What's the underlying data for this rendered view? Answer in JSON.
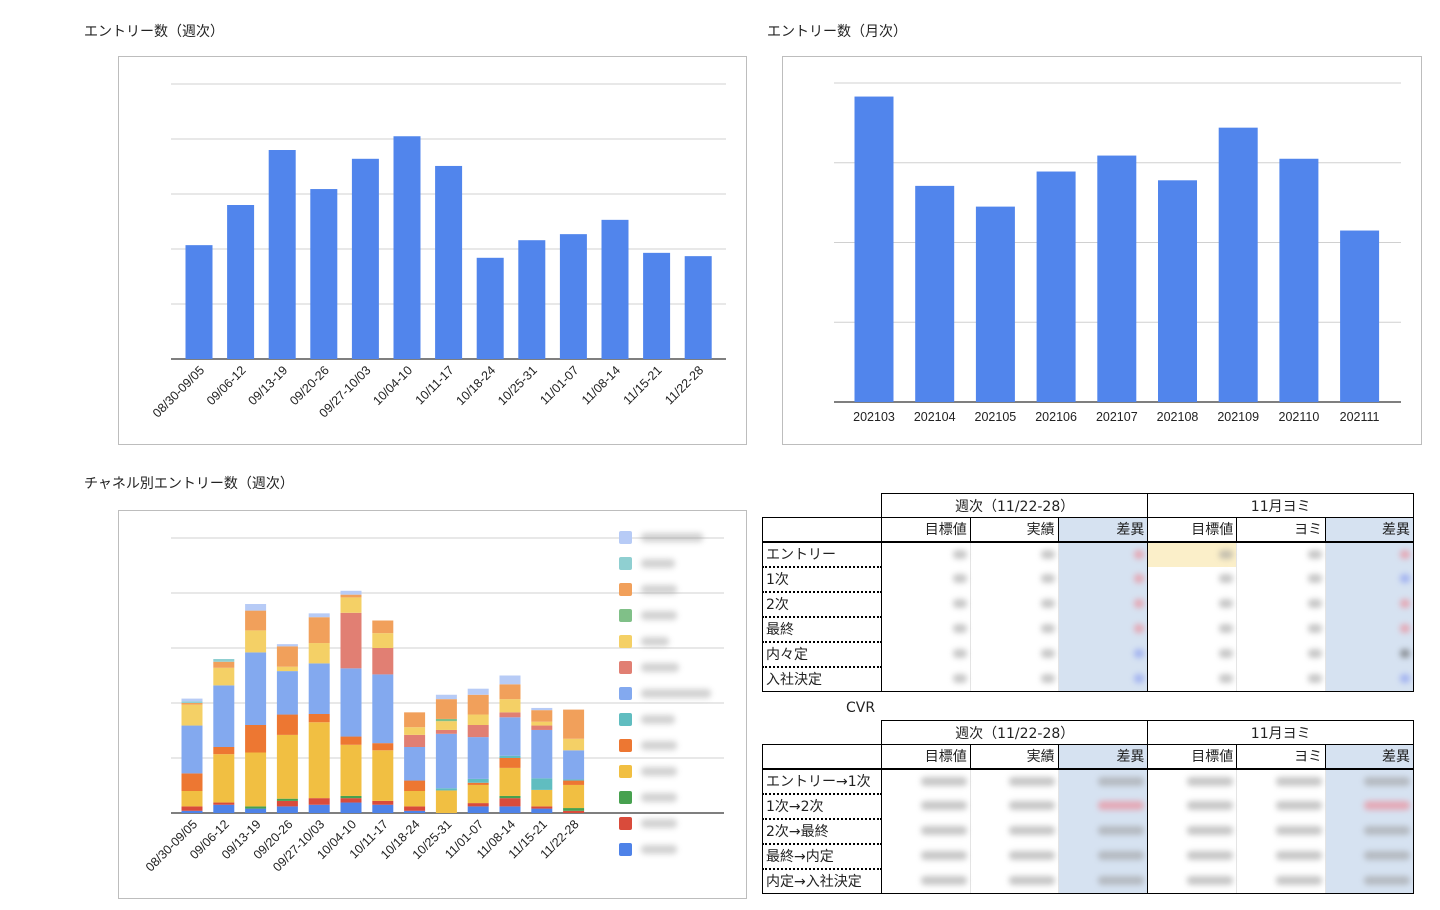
{
  "titles": {
    "weekly": "エントリー数（週次）",
    "monthly": "エントリー数（月次）",
    "channel": "チャネル別エントリー数（週次）"
  },
  "chart_data": [
    {
      "type": "bar",
      "title": "エントリー数（週次）",
      "categories": [
        "08/30-09/05",
        "09/06-12",
        "09/13-19",
        "09/20-26",
        "09/27-10/03",
        "10/04-10",
        "10/11-17",
        "10/18-24",
        "10/25-31",
        "11/01-07",
        "11/08-14",
        "11/15-21",
        "11/22-28"
      ],
      "values": [
        20.7,
        28,
        38,
        30.9,
        36.4,
        40.5,
        35.1,
        18.4,
        21.6,
        22.7,
        25.3,
        19.3,
        18.7
      ],
      "ylim": [
        0,
        50
      ],
      "grid": true,
      "color": "#5185ec"
    },
    {
      "type": "bar",
      "title": "エントリー数（月次）",
      "categories": [
        "202103",
        "202104",
        "202105",
        "202106",
        "202107",
        "202108",
        "202109",
        "202110",
        "202111"
      ],
      "values": [
        38.3,
        27.1,
        24.5,
        28.9,
        30.9,
        27.8,
        34.4,
        30.5,
        21.5
      ],
      "ylim": [
        0,
        40
      ],
      "grid": true,
      "color": "#5185ec"
    },
    {
      "type": "bar",
      "stacked": true,
      "title": "チャネル別エントリー数（週次）",
      "categories": [
        "08/30-09/05",
        "09/06-12",
        "09/13-19",
        "09/20-26",
        "09/27-10/03",
        "10/04-10",
        "10/11-17",
        "10/18-24",
        "10/25-31",
        "11/01-07",
        "11/08-14",
        "11/15-21",
        "11/22-28"
      ],
      "ylim": [
        0,
        50
      ],
      "grid": true,
      "legend": "right",
      "series": [
        {
          "color": "#4e82e8",
          "values": [
            0.4,
            1.5,
            0.8,
            1.2,
            1.5,
            1.9,
            1.5,
            0.4,
            0,
            1.2,
            1.2,
            0.8,
            0
          ]
        },
        {
          "color": "#d94b3b",
          "values": [
            0.8,
            0.4,
            0,
            1.0,
            1.2,
            0.8,
            0.7,
            0.8,
            0,
            0.6,
            1.5,
            0.4,
            0.4
          ]
        },
        {
          "color": "#47a14f",
          "values": [
            0,
            0,
            0.4,
            0.4,
            0,
            0.4,
            0,
            0,
            0,
            0,
            0.4,
            0,
            0.5
          ]
        },
        {
          "color": "#f1bf42",
          "values": [
            2.8,
            8.8,
            9.8,
            11.6,
            13.8,
            9.3,
            9.2,
            2.8,
            4.1,
            3.3,
            5.1,
            3.0,
            4.2
          ]
        },
        {
          "color": "#ed7732",
          "values": [
            3.2,
            1.3,
            5.0,
            3.7,
            1.5,
            1.5,
            1.3,
            1.9,
            0,
            0.4,
            1.8,
            0,
            0.8
          ]
        },
        {
          "color": "#60bdc0",
          "values": [
            0,
            0,
            0,
            0,
            0,
            0,
            0,
            0,
            0.4,
            0.7,
            0.4,
            2.1,
            0.2
          ]
        },
        {
          "color": "#83a9ef",
          "values": [
            8.7,
            11.2,
            13.2,
            7.9,
            9.2,
            12.4,
            12.5,
            6.1,
            9.9,
            7.6,
            7.0,
            8.8,
            5.3
          ]
        },
        {
          "color": "#e17f73",
          "values": [
            0,
            0,
            0,
            0,
            0,
            10.1,
            4.8,
            2.2,
            0.7,
            2.2,
            0.9,
            0.8,
            0
          ]
        },
        {
          "color": "#f4d066",
          "values": [
            3.8,
            3.2,
            4.0,
            0.8,
            3.7,
            2.8,
            2.7,
            1.4,
            1.6,
            1.9,
            2.4,
            0.7,
            2.1
          ]
        },
        {
          "color": "#80c088",
          "values": [
            0,
            0,
            0,
            0,
            0,
            0,
            0,
            0,
            0.4,
            0,
            0,
            0,
            0
          ]
        },
        {
          "color": "#f1a05b",
          "values": [
            0.3,
            1.1,
            3.6,
            3.7,
            4.7,
            0.5,
            2.3,
            2.7,
            3.6,
            3.6,
            2.7,
            2.1,
            5.3
          ]
        },
        {
          "color": "#8fcfd1",
          "values": [
            0.3,
            0.5,
            0,
            0,
            0,
            0,
            0,
            0,
            0,
            0,
            0,
            0,
            0
          ]
        },
        {
          "color": "#b7cbf6",
          "values": [
            0.5,
            0,
            1.2,
            0.4,
            0.7,
            0.7,
            0,
            0,
            0.8,
            1.1,
            1.6,
            0.4,
            0
          ]
        }
      ]
    }
  ],
  "table_counts": {
    "group_headers": [
      "週次（11/22-28）",
      "11月ヨミ"
    ],
    "col_headers": [
      "目標値",
      "実績",
      "差異",
      "目標値",
      "ヨミ",
      "差異"
    ],
    "rows": [
      "エントリー",
      "1次",
      "2次",
      "最終",
      "内々定",
      "入社決定"
    ]
  },
  "cvr": {
    "label": "CVR",
    "group_headers": [
      "週次（11/22-28）",
      "11月ヨミ"
    ],
    "col_headers": [
      "目標値",
      "実績",
      "差異",
      "目標値",
      "ヨミ",
      "差異"
    ],
    "rows": [
      "エントリー→1次",
      "1次→2次",
      "2次→最終",
      "最終→内定",
      "内定→入社決定"
    ]
  }
}
